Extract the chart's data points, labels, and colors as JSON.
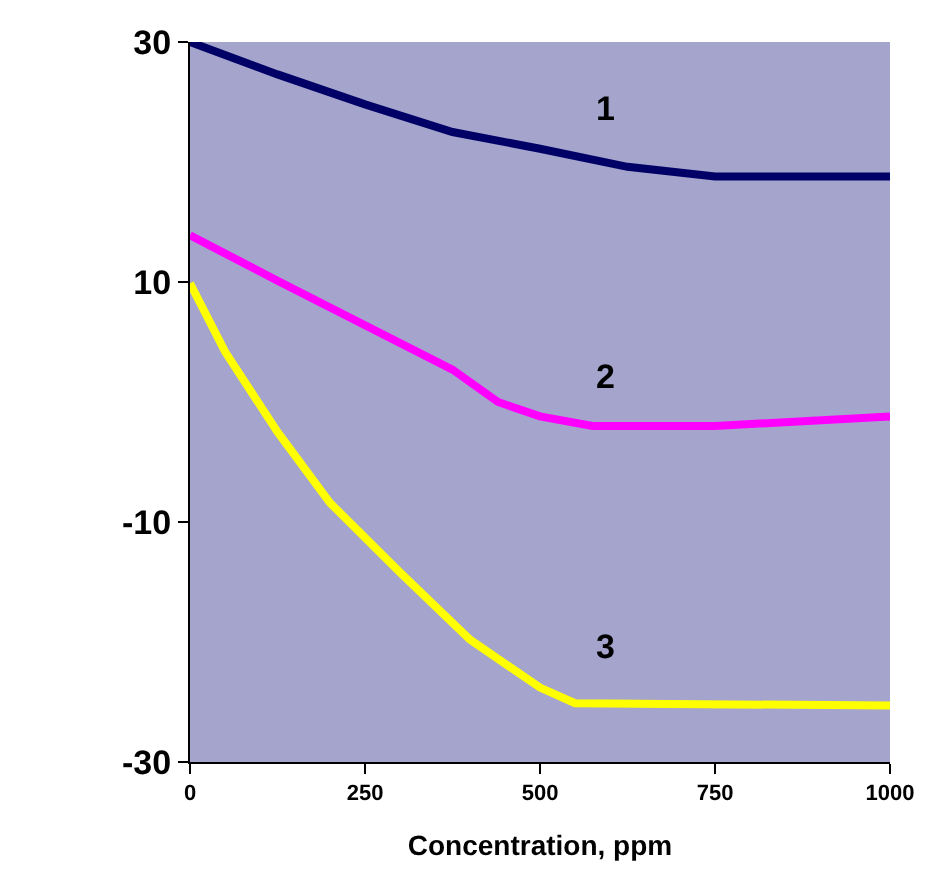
{
  "chart_data": {
    "type": "line",
    "xlabel": "Concentration, ppm",
    "xlim": [
      0,
      1000
    ],
    "xticks": [
      0,
      250,
      500,
      750,
      1000
    ],
    "ylim": [
      -30,
      30
    ],
    "yticks": [
      30,
      10,
      -10,
      -30
    ],
    "grid": false,
    "legend": false,
    "marker": "none",
    "line_style": "solid",
    "series": [
      {
        "name": "1",
        "color": "#000066",
        "x": [
          0,
          125,
          250,
          375,
          500,
          625,
          750,
          1000
        ],
        "values": [
          30,
          27.3,
          24.8,
          22.5,
          21.1,
          19.6,
          18.8,
          18.8
        ]
      },
      {
        "name": "2",
        "color": "#ff00ff",
        "x": [
          0,
          125,
          250,
          375,
          440,
          500,
          575,
          750,
          1000
        ],
        "values": [
          13.9,
          10.1,
          6.4,
          2.7,
          0,
          -1.2,
          -2,
          -2,
          -1.2
        ]
      },
      {
        "name": "3",
        "color": "#ffff00",
        "x": [
          0,
          50,
          125,
          200,
          300,
          400,
          500,
          550,
          1000
        ],
        "values": [
          9.9,
          4.2,
          -2.5,
          -8.4,
          -14.2,
          -19.8,
          -23.8,
          -25.1,
          -25.3
        ]
      }
    ]
  }
}
